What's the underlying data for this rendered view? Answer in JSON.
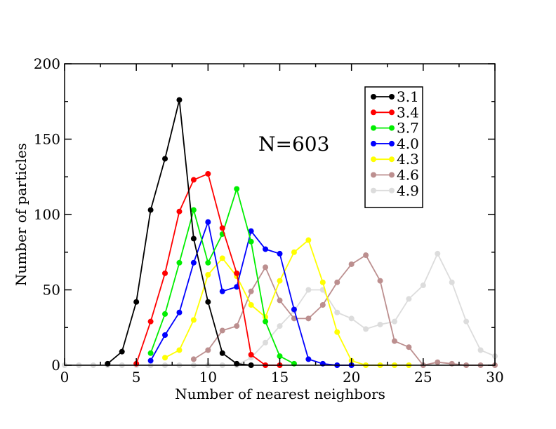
{
  "chart_data": {
    "type": "line",
    "xlabel": "Number of nearest neighbors",
    "ylabel": "Number of particles",
    "xlim": [
      0,
      30
    ],
    "ylim": [
      0,
      200
    ],
    "xticks": [
      0,
      5,
      10,
      15,
      20,
      25,
      30
    ],
    "yticks": [
      0,
      50,
      100,
      150,
      200
    ],
    "grid": false,
    "legend_position": "top-right",
    "annotation": "N=603",
    "series": [
      {
        "name": "3.1",
        "color": "#000000",
        "x": [
          3,
          4,
          5,
          6,
          7,
          8,
          9,
          10,
          11,
          12,
          13
        ],
        "y": [
          1,
          9,
          42,
          103,
          137,
          176,
          84,
          42,
          8,
          1,
          0
        ]
      },
      {
        "name": "3.4",
        "color": "#ff0000",
        "x": [
          5,
          6,
          7,
          8,
          9,
          10,
          11,
          12,
          13,
          14,
          15
        ],
        "y": [
          1,
          29,
          61,
          102,
          123,
          127,
          91,
          61,
          7,
          0,
          0
        ]
      },
      {
        "name": "3.7",
        "color": "#00ee00",
        "x": [
          6,
          7,
          8,
          9,
          10,
          11,
          12,
          13,
          14,
          15,
          16
        ],
        "y": [
          8,
          34,
          68,
          103,
          68,
          87,
          117,
          82,
          29,
          6,
          1
        ]
      },
      {
        "name": "4.0",
        "color": "#0000ff",
        "x": [
          6,
          7,
          8,
          9,
          10,
          11,
          12,
          13,
          14,
          15,
          16,
          17,
          18,
          19,
          20
        ],
        "y": [
          3,
          20,
          35,
          68,
          95,
          49,
          52,
          89,
          77,
          74,
          37,
          4,
          1,
          0,
          0
        ]
      },
      {
        "name": "4.3",
        "color": "#ffff00",
        "x": [
          7,
          8,
          9,
          10,
          11,
          12,
          13,
          14,
          15,
          16,
          17,
          18,
          19,
          20,
          21,
          22,
          23,
          24
        ],
        "y": [
          5,
          10,
          30,
          60,
          71,
          59,
          40,
          32,
          56,
          75,
          83,
          55,
          22,
          3,
          0,
          0,
          0,
          0
        ]
      },
      {
        "name": "4.6",
        "color": "#bc8f8f",
        "x": [
          9,
          10,
          11,
          12,
          13,
          14,
          15,
          16,
          17,
          18,
          19,
          20,
          21,
          22,
          23,
          24,
          25,
          26,
          27,
          28,
          29,
          30
        ],
        "y": [
          4,
          10,
          23,
          26,
          49,
          65,
          43,
          31,
          31,
          40,
          55,
          67,
          73,
          56,
          16,
          12,
          0,
          2,
          1,
          0,
          0,
          0
        ]
      },
      {
        "name": "4.9",
        "color": "#dcdcdc",
        "x": [
          0,
          1,
          2,
          3,
          4,
          5,
          6,
          7,
          8,
          9,
          10,
          11,
          12,
          13,
          14,
          15,
          16,
          17,
          18,
          19,
          20,
          21,
          22,
          23,
          24,
          25,
          26,
          27,
          28,
          29,
          30
        ],
        "y": [
          0,
          0,
          0,
          0,
          0,
          0,
          0,
          0,
          0,
          0,
          0,
          0,
          0,
          5,
          15,
          26,
          36,
          50,
          50,
          35,
          31,
          24,
          27,
          29,
          44,
          53,
          74,
          55,
          29,
          10,
          6
        ]
      }
    ]
  }
}
